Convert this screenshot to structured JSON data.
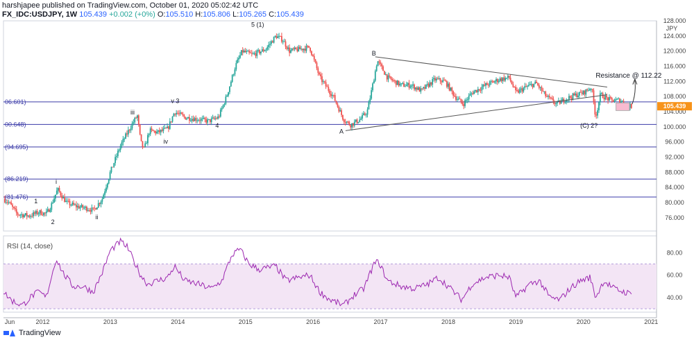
{
  "header": {
    "published": "harshjapee published on TradingView.com, October 01, 2020 05:02:42 UTC",
    "symbol": "FX_IDC:USDJPY, 1W",
    "last": "105.439",
    "change": "+0.002 (+0%)",
    "open_label": "O:",
    "open": "105.510",
    "high_label": "H:",
    "high": "105.806",
    "low_label": "L:",
    "low": "105.265",
    "close_label": "C:",
    "close": "105.439"
  },
  "footer": {
    "brand": "TradingView"
  },
  "colors": {
    "up": "#26a69a",
    "down": "#ef5350",
    "rsi": "#9c27b0",
    "levels": "#3a3aa8",
    "price_tag": "#f7931a"
  },
  "chart_data": {
    "type": "candlestick",
    "currency_label": "JPY",
    "price_ylim": [
      72.5,
      128
    ],
    "price_ticks": [
      76,
      80,
      84,
      88,
      92,
      96,
      100,
      104,
      108,
      112,
      116,
      120,
      124,
      128
    ],
    "price_tick_labels": [
      "76.000",
      "80.000",
      "84.000",
      "88.000",
      "92.000",
      "96.000",
      "100.000",
      "104.000",
      "108.000",
      "112.000",
      "116.000",
      "120.000",
      "124.000",
      "128.000"
    ],
    "last_price": 105.439,
    "last_price_label": "105.439",
    "x_range": [
      2011.42,
      2021.08
    ],
    "x_ticks": [
      {
        "x": 2011.45,
        "label": "Jun"
      },
      {
        "x": 2012,
        "label": "2012"
      },
      {
        "x": 2013,
        "label": "2013"
      },
      {
        "x": 2014,
        "label": "2014"
      },
      {
        "x": 2015,
        "label": "2015"
      },
      {
        "x": 2016,
        "label": "2016"
      },
      {
        "x": 2017,
        "label": "2017"
      },
      {
        "x": 2018,
        "label": "2018"
      },
      {
        "x": 2019,
        "label": "2019"
      },
      {
        "x": 2020,
        "label": "2020"
      },
      {
        "x": 2021,
        "label": "2021"
      }
    ],
    "horizontal_levels": [
      {
        "price": 106.601,
        "label": "06.601)"
      },
      {
        "price": 100.648,
        "label": "00.648)"
      },
      {
        "price": 94.695,
        "label": "(94.695)"
      },
      {
        "price": 86.219,
        "label": "(86.219)"
      },
      {
        "price": 81.476,
        "label": "(81.476)"
      }
    ],
    "price_anchors": [
      [
        2011.42,
        81.0
      ],
      [
        2011.5,
        80.0
      ],
      [
        2011.62,
        77.0
      ],
      [
        2011.8,
        76.5
      ],
      [
        2011.95,
        77.5
      ],
      [
        2012.05,
        77.0
      ],
      [
        2012.12,
        79.0
      ],
      [
        2012.22,
        83.5
      ],
      [
        2012.35,
        80.0
      ],
      [
        2012.5,
        79.0
      ],
      [
        2012.65,
        78.5
      ],
      [
        2012.75,
        78.0
      ],
      [
        2012.88,
        81.0
      ],
      [
        2013.0,
        88.0
      ],
      [
        2013.15,
        95.0
      ],
      [
        2013.3,
        100.0
      ],
      [
        2013.4,
        103.0
      ],
      [
        2013.45,
        96.0
      ],
      [
        2013.5,
        94.0
      ],
      [
        2013.58,
        99.0
      ],
      [
        2013.7,
        98.5
      ],
      [
        2013.85,
        99.5
      ],
      [
        2013.95,
        104.0
      ],
      [
        2014.1,
        102.5
      ],
      [
        2014.3,
        102.0
      ],
      [
        2014.45,
        101.5
      ],
      [
        2014.6,
        102.5
      ],
      [
        2014.72,
        108.0
      ],
      [
        2014.85,
        116.0
      ],
      [
        2014.95,
        120.0
      ],
      [
        2015.1,
        119.0
      ],
      [
        2015.3,
        120.5
      ],
      [
        2015.45,
        124.0
      ],
      [
        2015.55,
        123.0
      ],
      [
        2015.65,
        120.0
      ],
      [
        2015.8,
        120.5
      ],
      [
        2015.95,
        121.0
      ],
      [
        2016.1,
        113.0
      ],
      [
        2016.3,
        108.0
      ],
      [
        2016.45,
        102.0
      ],
      [
        2016.55,
        100.5
      ],
      [
        2016.7,
        102.0
      ],
      [
        2016.8,
        104.0
      ],
      [
        2016.87,
        110.0
      ],
      [
        2016.95,
        117.5
      ],
      [
        2017.1,
        113.0
      ],
      [
        2017.3,
        111.0
      ],
      [
        2017.45,
        111.0
      ],
      [
        2017.6,
        109.5
      ],
      [
        2017.8,
        112.5
      ],
      [
        2017.95,
        112.0
      ],
      [
        2018.1,
        108.0
      ],
      [
        2018.22,
        106.0
      ],
      [
        2018.35,
        109.0
      ],
      [
        2018.55,
        111.0
      ],
      [
        2018.75,
        112.5
      ],
      [
        2018.9,
        113.0
      ],
      [
        2019.0,
        109.0
      ],
      [
        2019.15,
        110.5
      ],
      [
        2019.3,
        111.5
      ],
      [
        2019.45,
        108.0
      ],
      [
        2019.6,
        106.0
      ],
      [
        2019.75,
        107.5
      ],
      [
        2019.9,
        108.5
      ],
      [
        2020.0,
        109.0
      ],
      [
        2020.12,
        110.5
      ],
      [
        2020.18,
        102.5
      ],
      [
        2020.25,
        108.5
      ],
      [
        2020.4,
        107.0
      ],
      [
        2020.55,
        107.0
      ],
      [
        2020.65,
        105.5
      ],
      [
        2020.72,
        105.4
      ]
    ],
    "rsi": {
      "label": "RSI (14, close)",
      "ylim": [
        27,
        95
      ],
      "ticks": [
        40,
        60,
        80
      ],
      "tick_labels": [
        "40.00",
        "60.00",
        "80.00"
      ],
      "band": [
        30,
        70
      ],
      "anchors": [
        [
          2011.42,
          45
        ],
        [
          2011.55,
          37
        ],
        [
          2011.7,
          33
        ],
        [
          2011.85,
          42
        ],
        [
          2011.95,
          45
        ],
        [
          2012.05,
          40
        ],
        [
          2012.2,
          75
        ],
        [
          2012.3,
          62
        ],
        [
          2012.45,
          50
        ],
        [
          2012.6,
          50
        ],
        [
          2012.75,
          45
        ],
        [
          2012.9,
          65
        ],
        [
          2013.0,
          82
        ],
        [
          2013.15,
          90
        ],
        [
          2013.25,
          85
        ],
        [
          2013.45,
          60
        ],
        [
          2013.55,
          52
        ],
        [
          2013.7,
          55
        ],
        [
          2013.85,
          58
        ],
        [
          2013.95,
          68
        ],
        [
          2014.1,
          55
        ],
        [
          2014.3,
          52
        ],
        [
          2014.5,
          48
        ],
        [
          2014.65,
          55
        ],
        [
          2014.8,
          78
        ],
        [
          2014.92,
          83
        ],
        [
          2015.05,
          70
        ],
        [
          2015.2,
          65
        ],
        [
          2015.45,
          68
        ],
        [
          2015.6,
          55
        ],
        [
          2015.8,
          58
        ],
        [
          2015.95,
          60
        ],
        [
          2016.1,
          45
        ],
        [
          2016.25,
          38
        ],
        [
          2016.45,
          33
        ],
        [
          2016.6,
          42
        ],
        [
          2016.75,
          48
        ],
        [
          2016.9,
          70
        ],
        [
          2016.97,
          72
        ],
        [
          2017.1,
          55
        ],
        [
          2017.3,
          50
        ],
        [
          2017.5,
          48
        ],
        [
          2017.7,
          52
        ],
        [
          2017.85,
          58
        ],
        [
          2018.0,
          50
        ],
        [
          2018.2,
          38
        ],
        [
          2018.35,
          52
        ],
        [
          2018.55,
          58
        ],
        [
          2018.75,
          60
        ],
        [
          2018.9,
          58
        ],
        [
          2019.0,
          40
        ],
        [
          2019.2,
          52
        ],
        [
          2019.35,
          55
        ],
        [
          2019.5,
          40
        ],
        [
          2019.65,
          38
        ],
        [
          2019.8,
          48
        ],
        [
          2019.95,
          55
        ],
        [
          2020.1,
          58
        ],
        [
          2020.18,
          40
        ],
        [
          2020.3,
          55
        ],
        [
          2020.45,
          48
        ],
        [
          2020.6,
          45
        ],
        [
          2020.72,
          43
        ]
      ]
    },
    "annotations": [
      {
        "text": "1",
        "x": 2011.9,
        "price": 79.8
      },
      {
        "text": "2",
        "x": 2012.15,
        "price": 74.3
      },
      {
        "text": "i",
        "x": 2012.2,
        "price": 85.0
      },
      {
        "text": "ii",
        "x": 2012.8,
        "price": 75.6
      },
      {
        "text": "iii",
        "x": 2013.33,
        "price": 103.3
      },
      {
        "text": "iv",
        "x": 2013.82,
        "price": 95.6
      },
      {
        "text": "v 3",
        "x": 2013.96,
        "price": 106.3
      },
      {
        "text": "4",
        "x": 2014.58,
        "price": 99.8
      },
      {
        "text": "5 (1)",
        "x": 2015.18,
        "price": 126.4
      },
      {
        "text": "B",
        "x": 2016.9,
        "price": 118.8
      },
      {
        "text": "A",
        "x": 2016.42,
        "price": 98.2
      },
      {
        "text": "(C) 2?",
        "x": 2020.08,
        "price": 99.8
      },
      {
        "text": "Resistance @ 112.22",
        "x": 2020.18,
        "price": 113.0
      }
    ],
    "trendlines": [
      {
        "from": [
          2016.92,
          118.5
        ],
        "to": [
          2020.35,
          110.5
        ]
      },
      {
        "from": [
          2016.48,
          99.0
        ],
        "to": [
          2020.35,
          108.5
        ]
      }
    ]
  }
}
